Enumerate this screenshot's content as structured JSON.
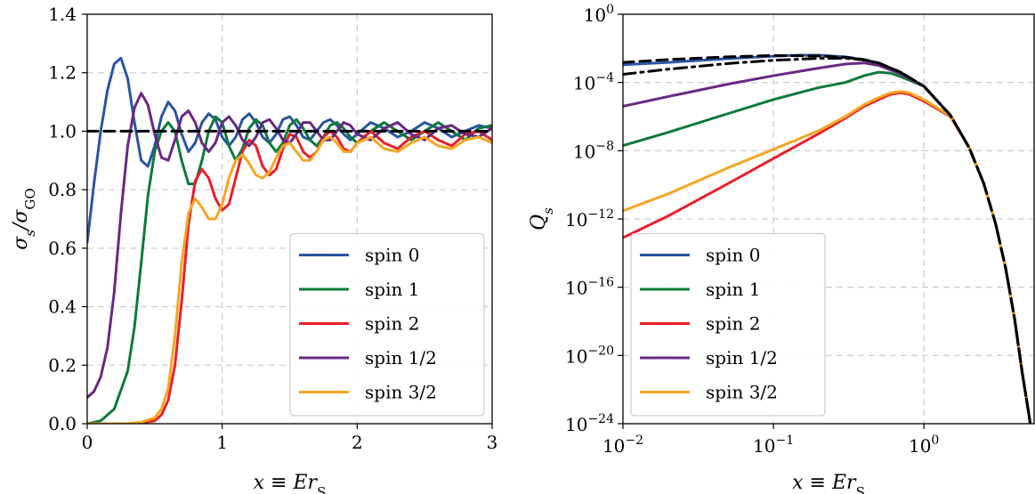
{
  "chart_data": [
    {
      "type": "line",
      "xlabel": "x ≡ Er_S",
      "ylabel": "σ_s/σ_GO",
      "xlim": [
        0,
        3
      ],
      "ylim": [
        0,
        1.4
      ],
      "xscale": "linear",
      "yscale": "linear",
      "grid": true,
      "legend_position": "lower-right",
      "xticks": [
        {
          "v": 0,
          "label": "0"
        },
        {
          "v": 1,
          "label": "1"
        },
        {
          "v": 2,
          "label": "2"
        },
        {
          "v": 3,
          "label": "3"
        }
      ],
      "yticks": [
        {
          "v": 0,
          "label": "0.0"
        },
        {
          "v": 0.2,
          "label": "0.2"
        },
        {
          "v": 0.4,
          "label": "0.4"
        },
        {
          "v": 0.6,
          "label": "0.6"
        },
        {
          "v": 0.8,
          "label": "0.8"
        },
        {
          "v": 1.0,
          "label": "1.0"
        },
        {
          "v": 1.2,
          "label": "1.2"
        },
        {
          "v": 1.4,
          "label": "1.4"
        }
      ],
      "series": [
        {
          "name": "spin 0",
          "color": "#2a55a2",
          "x": [
            0,
            0.05,
            0.1,
            0.15,
            0.2,
            0.25,
            0.3,
            0.35,
            0.4,
            0.45,
            0.5,
            0.55,
            0.6,
            0.65,
            0.7,
            0.75,
            0.8,
            0.85,
            0.9,
            0.95,
            1.0,
            1.05,
            1.1,
            1.15,
            1.2,
            1.25,
            1.3,
            1.35,
            1.4,
            1.45,
            1.5,
            1.55,
            1.6,
            1.65,
            1.7,
            1.75,
            1.8,
            1.85,
            1.9,
            1.95,
            2.0,
            2.1,
            2.2,
            2.3,
            2.4,
            2.5,
            2.6,
            2.7,
            2.8,
            2.9,
            3.0
          ],
          "y": [
            0.62,
            0.82,
            1.0,
            1.14,
            1.23,
            1.25,
            1.18,
            1.03,
            0.9,
            0.88,
            0.95,
            1.05,
            1.1,
            1.07,
            0.99,
            0.93,
            0.96,
            1.03,
            1.06,
            1.04,
            0.98,
            0.95,
            0.98,
            1.04,
            1.06,
            1.03,
            0.98,
            0.96,
            0.99,
            1.04,
            1.05,
            1.02,
            0.98,
            0.97,
            1.0,
            1.03,
            1.04,
            1.02,
            0.99,
            0.97,
            0.99,
            1.03,
            1.01,
            0.98,
            1.0,
            1.03,
            1.01,
            0.98,
            1.0,
            1.02,
            1.01
          ]
        },
        {
          "name": "spin 1",
          "color": "#0e7a3b",
          "x": [
            0,
            0.1,
            0.2,
            0.3,
            0.35,
            0.4,
            0.45,
            0.5,
            0.55,
            0.6,
            0.65,
            0.7,
            0.75,
            0.8,
            0.85,
            0.9,
            0.95,
            1.0,
            1.05,
            1.1,
            1.15,
            1.2,
            1.25,
            1.3,
            1.35,
            1.4,
            1.45,
            1.5,
            1.55,
            1.6,
            1.65,
            1.7,
            1.75,
            1.8,
            1.85,
            1.9,
            1.95,
            2.0,
            2.1,
            2.2,
            2.3,
            2.4,
            2.5,
            2.6,
            2.7,
            2.8,
            2.9,
            3.0
          ],
          "y": [
            0.0,
            0.01,
            0.05,
            0.18,
            0.33,
            0.55,
            0.78,
            0.93,
            1.0,
            1.03,
            1.0,
            0.9,
            0.82,
            0.82,
            0.9,
            1.0,
            1.05,
            1.03,
            0.95,
            0.9,
            0.94,
            1.01,
            1.04,
            1.02,
            0.96,
            0.93,
            0.96,
            1.02,
            1.04,
            1.01,
            0.97,
            0.95,
            0.98,
            1.02,
            1.03,
            1.01,
            0.98,
            0.96,
            1.0,
            1.03,
            1.0,
            0.97,
            1.0,
            1.03,
            1.0,
            0.97,
            1.01,
            1.02
          ]
        },
        {
          "name": "spin 2",
          "color": "#e8202a",
          "x": [
            0,
            0.3,
            0.4,
            0.5,
            0.55,
            0.6,
            0.65,
            0.7,
            0.75,
            0.8,
            0.85,
            0.9,
            0.95,
            1.0,
            1.05,
            1.1,
            1.15,
            1.2,
            1.25,
            1.3,
            1.35,
            1.4,
            1.45,
            1.5,
            1.55,
            1.6,
            1.65,
            1.7,
            1.75,
            1.8,
            1.85,
            1.9,
            1.95,
            2.0,
            2.1,
            2.2,
            2.3,
            2.4,
            2.5,
            2.6,
            2.7,
            2.8,
            2.9,
            3.0
          ],
          "y": [
            0.0,
            0.0,
            0.003,
            0.01,
            0.03,
            0.08,
            0.2,
            0.42,
            0.68,
            0.83,
            0.87,
            0.84,
            0.77,
            0.73,
            0.75,
            0.84,
            0.93,
            0.97,
            0.95,
            0.88,
            0.85,
            0.87,
            0.94,
            0.99,
            0.98,
            0.93,
            0.91,
            0.93,
            0.98,
            1.0,
            0.98,
            0.94,
            0.93,
            0.96,
            1.0,
            0.96,
            0.94,
            0.98,
            1.0,
            0.97,
            0.95,
            0.99,
            1.0,
            0.97
          ]
        },
        {
          "name": "spin 1/2",
          "color": "#6a2882",
          "x": [
            0,
            0.05,
            0.1,
            0.15,
            0.2,
            0.25,
            0.3,
            0.35,
            0.4,
            0.45,
            0.5,
            0.55,
            0.6,
            0.65,
            0.7,
            0.75,
            0.8,
            0.85,
            0.9,
            0.95,
            1.0,
            1.05,
            1.1,
            1.15,
            1.2,
            1.25,
            1.3,
            1.35,
            1.4,
            1.45,
            1.5,
            1.55,
            1.6,
            1.65,
            1.7,
            1.75,
            1.8,
            1.85,
            1.9,
            1.95,
            2.0,
            2.1,
            2.2,
            2.3,
            2.4,
            2.5,
            2.6,
            2.7,
            2.8,
            2.9,
            3.0
          ],
          "y": [
            0.09,
            0.11,
            0.16,
            0.26,
            0.45,
            0.72,
            0.95,
            1.08,
            1.13,
            1.09,
            0.99,
            0.91,
            0.9,
            0.97,
            1.05,
            1.07,
            1.03,
            0.96,
            0.93,
            0.96,
            1.03,
            1.05,
            1.02,
            0.97,
            0.95,
            0.98,
            1.03,
            1.04,
            1.01,
            0.97,
            0.96,
            0.99,
            1.03,
            1.03,
            1.0,
            0.97,
            0.97,
            1.0,
            1.03,
            1.02,
            0.99,
            0.97,
            1.01,
            1.03,
            0.99,
            0.97,
            1.01,
            1.02,
            0.99,
            0.98,
            1.01
          ]
        },
        {
          "name": "spin 3/2",
          "color": "#f5a623",
          "x": [
            0,
            0.3,
            0.4,
            0.5,
            0.55,
            0.6,
            0.65,
            0.7,
            0.75,
            0.8,
            0.85,
            0.9,
            0.95,
            1.0,
            1.05,
            1.1,
            1.15,
            1.2,
            1.25,
            1.3,
            1.35,
            1.4,
            1.45,
            1.5,
            1.55,
            1.6,
            1.65,
            1.7,
            1.75,
            1.8,
            1.85,
            1.9,
            1.95,
            2.0,
            2.1,
            2.2,
            2.3,
            2.4,
            2.5,
            2.6,
            2.7,
            2.8,
            2.9,
            3.0
          ],
          "y": [
            0.0,
            0.0,
            0.005,
            0.02,
            0.05,
            0.12,
            0.3,
            0.55,
            0.72,
            0.77,
            0.74,
            0.7,
            0.7,
            0.75,
            0.84,
            0.9,
            0.92,
            0.89,
            0.85,
            0.84,
            0.86,
            0.91,
            0.95,
            0.96,
            0.93,
            0.9,
            0.9,
            0.93,
            0.97,
            0.98,
            0.96,
            0.93,
            0.93,
            0.96,
            0.98,
            0.94,
            0.93,
            0.96,
            0.98,
            0.95,
            0.94,
            0.97,
            0.98,
            0.96
          ]
        },
        {
          "name": "",
          "color": "#000000",
          "dashed": true,
          "x": [
            0,
            3
          ],
          "y": [
            1.0,
            1.0
          ]
        }
      ]
    },
    {
      "type": "line",
      "xlabel": "x ≡ Er_S",
      "ylabel": "Q_s",
      "xlim": [
        0.01,
        5.4
      ],
      "ylim": [
        1e-24,
        1
      ],
      "xscale": "log",
      "yscale": "log",
      "grid": true,
      "legend_position": "lower-left",
      "xticks": [
        {
          "v": 0.01,
          "base": "10",
          "exp": "−2"
        },
        {
          "v": 0.1,
          "base": "10",
          "exp": "−1"
        },
        {
          "v": 1,
          "base": "10",
          "exp": "0"
        }
      ],
      "yticks": [
        {
          "v": 1e-24,
          "base": "10",
          "exp": "−24"
        },
        {
          "v": 1e-20,
          "base": "10",
          "exp": "−20"
        },
        {
          "v": 1e-16,
          "base": "10",
          "exp": "−16"
        },
        {
          "v": 1e-12,
          "base": "10",
          "exp": "−12"
        },
        {
          "v": 1e-08,
          "base": "10",
          "exp": "−8"
        },
        {
          "v": 0.0001,
          "base": "10",
          "exp": "−4"
        },
        {
          "v": 1,
          "base": "10",
          "exp": "0"
        }
      ],
      "series": [
        {
          "name": "spin 0",
          "color": "#2a55a2",
          "x": [
            0.01,
            0.02,
            0.05,
            0.1,
            0.15,
            0.2,
            0.3,
            0.4,
            0.5,
            0.7,
            1.0,
            1.5,
            2.0,
            2.5,
            3.0,
            3.5,
            4.0,
            4.5,
            5.0,
            5.4
          ],
          "y": [
            0.0011,
            0.0015,
            0.0025,
            0.0035,
            0.004,
            0.004,
            0.0032,
            0.0022,
            0.0012,
            0.00035,
            6e-05,
            1.2e-06,
            1.5e-08,
            1.2e-10,
            5e-13,
            1.2e-15,
            1.5e-18,
            1e-21,
            3e-24,
            2e-26
          ]
        },
        {
          "name": "spin 1",
          "color": "#0e7a3b",
          "x": [
            0.01,
            0.02,
            0.05,
            0.1,
            0.2,
            0.3,
            0.4,
            0.5,
            0.6,
            0.7,
            1.0,
            1.5,
            2.0,
            2.5,
            3.0,
            3.5,
            4.0,
            4.5,
            5.0,
            5.4
          ],
          "y": [
            2e-08,
            1.2e-07,
            1.5e-06,
            1e-05,
            5e-05,
            0.0001,
            0.00025,
            0.0004,
            0.00035,
            0.00022,
            6e-05,
            1.2e-06,
            1.5e-08,
            1.2e-10,
            5e-13,
            1.2e-15,
            1.5e-18,
            1e-21,
            3e-24,
            2e-26
          ]
        },
        {
          "name": "spin 2",
          "color": "#e8202a",
          "x": [
            0.01,
            0.02,
            0.05,
            0.1,
            0.2,
            0.3,
            0.4,
            0.5,
            0.6,
            0.7,
            0.8,
            1.0,
            1.5,
            2.0,
            2.5,
            3.0,
            3.5,
            4.0,
            4.5,
            5.0,
            5.4
          ],
          "y": [
            8e-14,
            1.5e-12,
            1.2e-10,
            3.5e-09,
            1e-07,
            8e-07,
            4e-06,
            1e-05,
            2e-05,
            2.5e-05,
            2e-05,
            8e-06,
            1e-06,
            1.5e-08,
            1.2e-10,
            5e-13,
            1.2e-15,
            1.5e-18,
            1e-21,
            3e-24,
            2e-26
          ]
        },
        {
          "name": "spin 1/2",
          "color": "#6a2882",
          "x": [
            0.01,
            0.02,
            0.05,
            0.1,
            0.2,
            0.3,
            0.4,
            0.5,
            0.7,
            1.0,
            1.5,
            2.0,
            2.5,
            3.0,
            3.5,
            4.0,
            4.5,
            5.0,
            5.4
          ],
          "y": [
            4e-06,
            1.5e-05,
            8e-05,
            0.00025,
            0.0007,
            0.0012,
            0.0014,
            0.001,
            0.00032,
            6e-05,
            1.2e-06,
            1.5e-08,
            1.2e-10,
            5e-13,
            1.2e-15,
            1.5e-18,
            1e-21,
            3e-24,
            2e-26
          ]
        },
        {
          "name": "spin 3/2",
          "color": "#f5a623",
          "x": [
            0.01,
            0.02,
            0.05,
            0.1,
            0.2,
            0.3,
            0.4,
            0.5,
            0.6,
            0.7,
            0.8,
            1.0,
            1.5,
            2.0,
            2.5,
            3.0,
            3.5,
            4.0,
            4.5,
            5.0,
            5.4
          ],
          "y": [
            3e-12,
            3e-11,
            1e-09,
            1.2e-08,
            1.5e-07,
            1e-06,
            5e-06,
            1.3e-05,
            2.5e-05,
            3e-05,
            2.5e-05,
            1e-05,
            1.1e-06,
            1.5e-08,
            1.2e-10,
            5e-13,
            1.2e-15,
            1.5e-18,
            1e-21,
            3e-24,
            2e-26
          ]
        },
        {
          "name": "",
          "color": "#000000",
          "dashed": true,
          "x": [
            0.01,
            0.02,
            0.05,
            0.1,
            0.2,
            0.3,
            0.4,
            0.5,
            0.7,
            1.0,
            1.5,
            2.0,
            2.5,
            3.0,
            3.5,
            4.0,
            4.5,
            5.0,
            5.4
          ],
          "y": [
            0.0015,
            0.0022,
            0.0032,
            0.0038,
            0.0036,
            0.003,
            0.0022,
            0.0014,
            0.0004,
            6e-05,
            1.2e-06,
            1.5e-08,
            1.2e-10,
            5e-13,
            1.2e-15,
            1.5e-18,
            1e-21,
            3e-24,
            2e-26
          ]
        },
        {
          "name": "",
          "color": "#000000",
          "dashdot": true,
          "x": [
            0.01,
            0.02,
            0.05,
            0.1,
            0.2,
            0.3,
            0.4,
            0.5,
            0.7,
            1.0,
            1.5,
            2.0,
            2.5,
            3.0,
            3.5,
            4.0,
            4.5,
            5.0,
            5.4
          ],
          "y": [
            0.0003,
            0.0006,
            0.0013,
            0.002,
            0.0026,
            0.0026,
            0.0021,
            0.0014,
            0.0004,
            6e-05,
            1.2e-06,
            1.5e-08,
            1.2e-10,
            5e-13,
            1.2e-15,
            1.5e-18,
            1e-21,
            3e-24,
            2e-26
          ]
        }
      ]
    }
  ]
}
